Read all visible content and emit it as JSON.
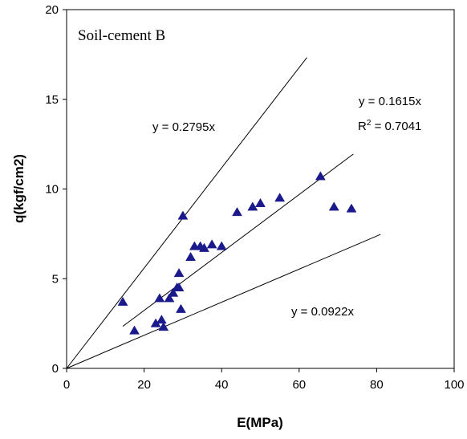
{
  "chart_data": {
    "type": "scatter",
    "annotation": "Soil-cement B",
    "xlabel": "E(MPa)",
    "ylabel": "q(kgf/cm2)",
    "xlim": [
      0,
      100
    ],
    "ylim": [
      0,
      20
    ],
    "x_ticks": [
      0,
      20,
      40,
      60,
      80,
      100
    ],
    "y_ticks": [
      0,
      5,
      10,
      15,
      20
    ],
    "grid": false,
    "marker": "triangle",
    "marker_color": "#1a1a8c",
    "points": [
      {
        "x": 14.5,
        "y": 3.7
      },
      {
        "x": 17.5,
        "y": 2.1
      },
      {
        "x": 23.0,
        "y": 2.5
      },
      {
        "x": 24.0,
        "y": 3.9
      },
      {
        "x": 24.5,
        "y": 2.7
      },
      {
        "x": 25.0,
        "y": 2.3
      },
      {
        "x": 26.5,
        "y": 3.9
      },
      {
        "x": 27.5,
        "y": 4.2
      },
      {
        "x": 28.5,
        "y": 4.5
      },
      {
        "x": 29.0,
        "y": 5.3
      },
      {
        "x": 29.0,
        "y": 4.5
      },
      {
        "x": 29.5,
        "y": 3.3
      },
      {
        "x": 30.0,
        "y": 8.5
      },
      {
        "x": 32.0,
        "y": 6.2
      },
      {
        "x": 33.0,
        "y": 6.8
      },
      {
        "x": 34.5,
        "y": 6.8
      },
      {
        "x": 35.5,
        "y": 6.7
      },
      {
        "x": 37.5,
        "y": 6.9
      },
      {
        "x": 40.0,
        "y": 6.8
      },
      {
        "x": 44.0,
        "y": 8.7
      },
      {
        "x": 48.0,
        "y": 9.0
      },
      {
        "x": 50.0,
        "y": 9.2
      },
      {
        "x": 55.0,
        "y": 9.5
      },
      {
        "x": 65.5,
        "y": 10.7
      },
      {
        "x": 69.0,
        "y": 9.0
      },
      {
        "x": 73.5,
        "y": 8.9
      }
    ],
    "lines": [
      {
        "slope": 0.2795,
        "x_range": [
          0,
          62
        ],
        "label": "y = 0.2795x"
      },
      {
        "slope": 0.1615,
        "x_range": [
          14.5,
          74
        ],
        "label": "y = 0.1615x",
        "r2_label": "R",
        "r2_sup": "2",
        "r2_value": " = 0.7041"
      },
      {
        "slope": 0.0922,
        "x_range": [
          0,
          81
        ],
        "label": "y = 0.0922x"
      }
    ]
  }
}
